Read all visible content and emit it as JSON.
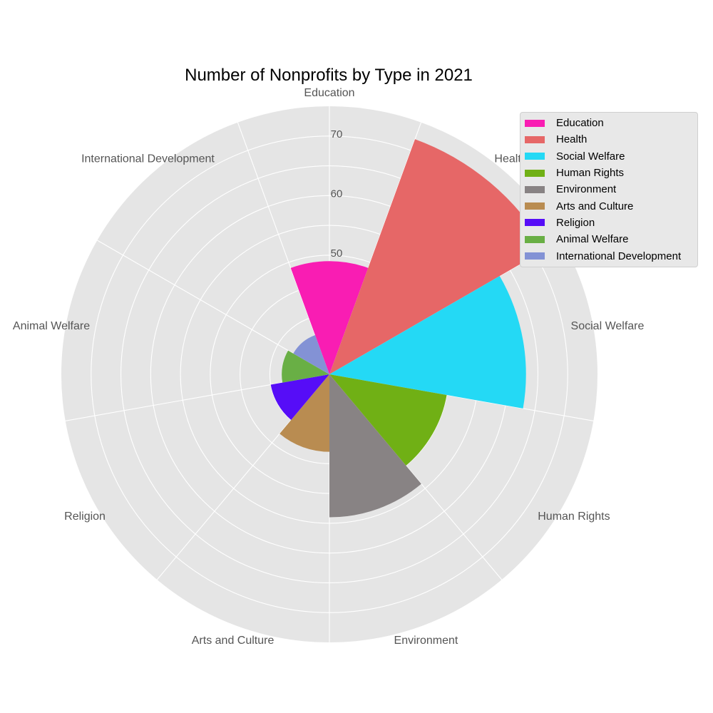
{
  "chart_data": {
    "type": "polar-bar",
    "title": "Number of Nonprofits by Type in 2021",
    "categories": [
      "Education",
      "Health",
      "Social Welfare",
      "Human Rights",
      "Environment",
      "Arts and Culture",
      "Religion",
      "Animal Welfare",
      "International Development"
    ],
    "values": [
      49,
      72,
      63,
      50,
      54,
      43,
      40,
      38,
      37
    ],
    "colors": [
      "#f91db3",
      "#e66767",
      "#24d9f5",
      "#70b015",
      "#888384",
      "#b98c51",
      "#560df7",
      "#69af45",
      "#8392d5"
    ],
    "radial_ticks": [
      50,
      60,
      70
    ],
    "r_axis_base": 30,
    "r_axis_max": 75,
    "grid": true,
    "legend": {
      "position": "top-right",
      "entries": [
        "Education",
        "Health",
        "Social Welfare",
        "Human Rights",
        "Environment",
        "Arts and Culture",
        "Religion",
        "Animal Welfare",
        "International Development"
      ]
    }
  }
}
